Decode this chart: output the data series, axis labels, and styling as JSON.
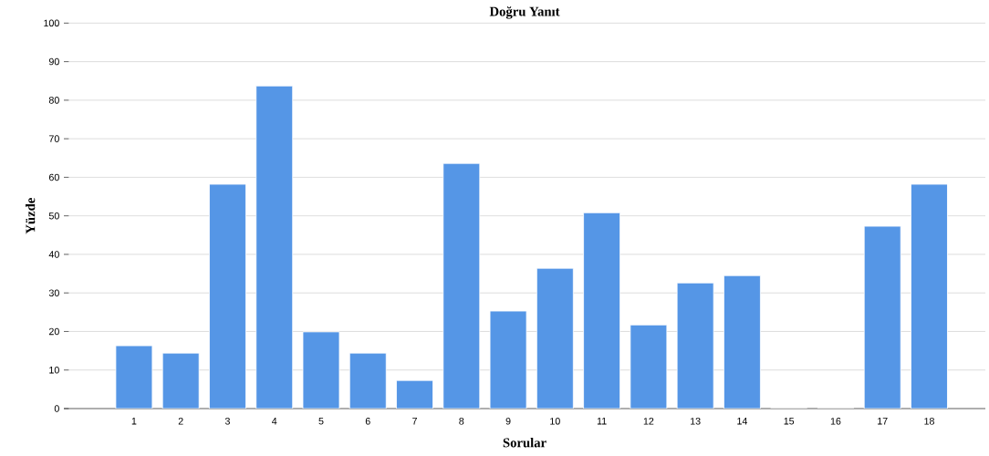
{
  "chart_data": {
    "type": "bar",
    "title": "Doğru Yanıt",
    "xlabel": "Sorular",
    "ylabel": "Yüzde",
    "categories": [
      "1",
      "2",
      "3",
      "4",
      "5",
      "6",
      "7",
      "8",
      "9",
      "10",
      "11",
      "12",
      "13",
      "14",
      "15",
      "16",
      "17",
      "18"
    ],
    "values": [
      16.3,
      14.4,
      58.2,
      83.7,
      19.9,
      14.4,
      7.3,
      63.6,
      25.3,
      36.4,
      50.8,
      21.7,
      32.6,
      34.5,
      0,
      0,
      47.3,
      58.2
    ],
    "color": "#5596e6",
    "ylim": [
      0,
      100
    ],
    "yticks": [
      0,
      10,
      20,
      30,
      40,
      50,
      60,
      70,
      80,
      90,
      100
    ],
    "grid": "y"
  }
}
